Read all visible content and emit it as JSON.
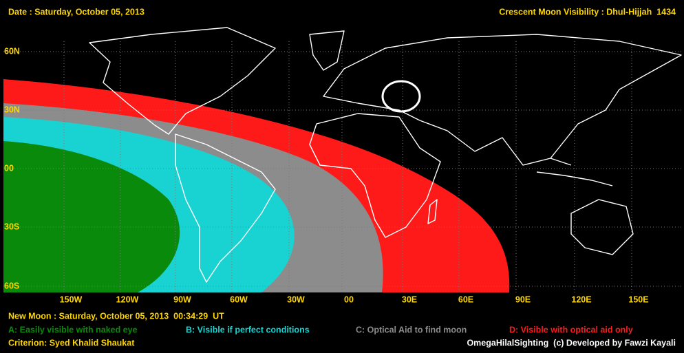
{
  "header": {
    "date": "Date : Saturday, October 05, 2013",
    "title": "Crescent Moon Visibility : Dhul-Hijjah  1434"
  },
  "map": {
    "lat_labels": [
      "60N",
      "30N",
      "00",
      "30S",
      "60S"
    ],
    "lon_labels": [
      "150W",
      "120W",
      "90W",
      "60W",
      "30W",
      "00",
      "30E",
      "60E",
      "90E",
      "120E",
      "150E"
    ]
  },
  "footer": {
    "new_moon": "New Moon : Saturday, October 05, 2013  00:34:29  UT",
    "legend": [
      {
        "label": "A: Easily visible with naked eye",
        "color": "#0a8a0a"
      },
      {
        "label": "B: Visible if perfect conditions",
        "color": "#19d2d2"
      },
      {
        "label": "C: Optical Aid to find moon",
        "color": "#8c8c8c"
      },
      {
        "label": "D: Visible with optical aid only",
        "color": "#ff1a1a"
      }
    ],
    "criterion": "Criterion: Syed Khalid Shaukat",
    "credit": "OmegaHilalSighting  (c) Developed by Fawzi Kayali"
  }
}
